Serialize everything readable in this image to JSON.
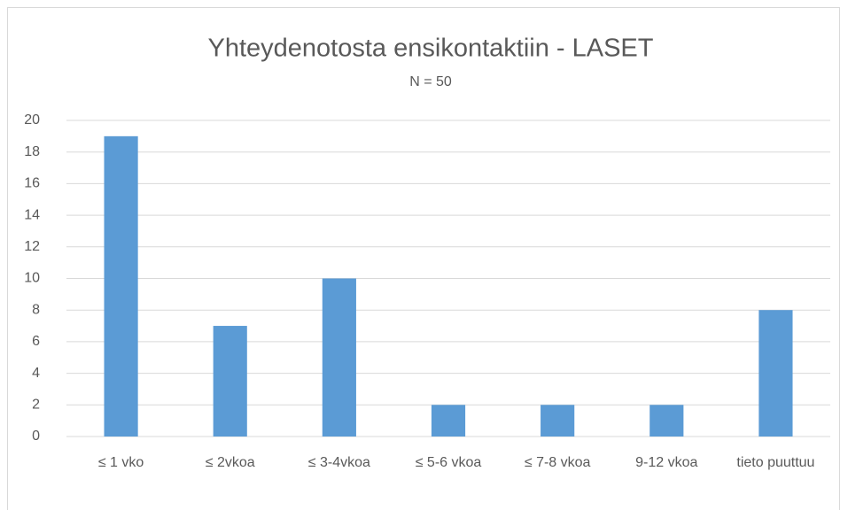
{
  "chart_data": {
    "type": "bar",
    "title": "Yhteydenotosta ensikontaktiin - LASET",
    "subtitle": "N = 50",
    "categories": [
      "≤ 1 vko",
      "≤ 2vkoa",
      "≤ 3-4vkoa",
      "≤ 5-6 vkoa",
      "≤ 7-8 vkoa",
      "9-12 vkoa",
      "tieto puuttuu"
    ],
    "values": [
      19,
      7,
      10,
      2,
      2,
      2,
      8
    ],
    "color": "#5b9bd5",
    "ylim": [
      0,
      20
    ],
    "yticks": [
      0,
      2,
      4,
      6,
      8,
      10,
      12,
      14,
      16,
      18,
      20
    ],
    "grid": true
  }
}
